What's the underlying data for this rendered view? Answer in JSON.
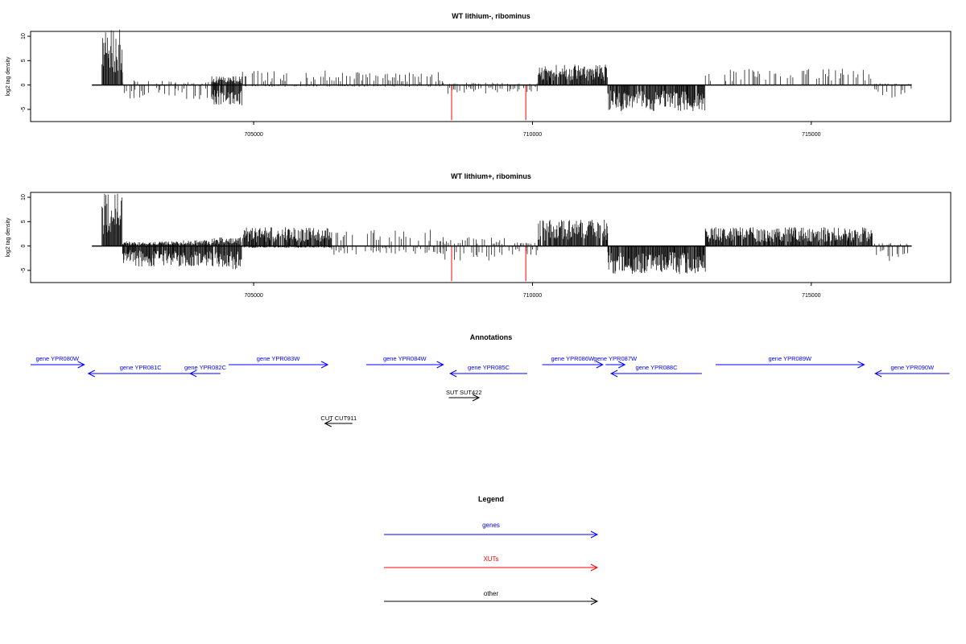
{
  "chart_data": [
    {
      "type": "bar",
      "title": "WT lithium-, ribominus",
      "ylabel": "log2 tag density",
      "xlim": [
        701000,
        717500
      ],
      "ylim": [
        -7.5,
        11
      ],
      "x_ticks": [
        705000,
        710000,
        715000
      ],
      "x_tick_labels": [
        "705000",
        "710000",
        "715000"
      ],
      "y_ticks": [
        -5,
        0,
        5,
        10
      ],
      "y_tick_labels": [
        "-5",
        "0",
        "5",
        "10"
      ],
      "baseline_range": [
        702100,
        716800
      ],
      "profile": [
        {
          "start": 702280,
          "end": 702650,
          "plus": 9.5,
          "minus": 0
        },
        {
          "start": 702650,
          "end": 703600,
          "plus": 0.8,
          "minus": -2.5
        },
        {
          "start": 703600,
          "end": 704250,
          "plus": 0.5,
          "minus": -2.5
        },
        {
          "start": 704250,
          "end": 704800,
          "plus": 1.5,
          "minus": -3.5
        },
        {
          "start": 704800,
          "end": 706400,
          "plus": 2.5,
          "minus": -0.3
        },
        {
          "start": 706400,
          "end": 708400,
          "plus": 2.2,
          "minus": -0.3
        },
        {
          "start": 708400,
          "end": 709700,
          "plus": 0.4,
          "minus": -1.5
        },
        {
          "start": 709700,
          "end": 710100,
          "plus": 0.3,
          "minus": -1.2
        },
        {
          "start": 710100,
          "end": 711350,
          "plus": 3.5,
          "minus": 0
        },
        {
          "start": 711350,
          "end": 713100,
          "plus": 0,
          "minus": -4.5
        },
        {
          "start": 713100,
          "end": 716100,
          "plus": 2.8,
          "minus": 0
        },
        {
          "start": 716100,
          "end": 716800,
          "plus": 0.3,
          "minus": -2.2
        }
      ],
      "highlights": [
        {
          "x": 708550,
          "value": -7.2,
          "color": "#ff0000"
        },
        {
          "x": 709880,
          "value": -7.2,
          "color": "#ff0000"
        }
      ]
    },
    {
      "type": "bar",
      "title": "WT lithium+, ribominus",
      "ylabel": "log2 tag density",
      "xlim": [
        701000,
        717500
      ],
      "ylim": [
        -7.5,
        11
      ],
      "x_ticks": [
        705000,
        710000,
        715000
      ],
      "x_tick_labels": [
        "705000",
        "710000",
        "715000"
      ],
      "y_ticks": [
        -5,
        0,
        5,
        10
      ],
      "y_tick_labels": [
        "-5",
        "0",
        "5",
        "10"
      ],
      "baseline_range": [
        702100,
        716800
      ],
      "profile": [
        {
          "start": 702280,
          "end": 702650,
          "plus": 9.0,
          "minus": 0
        },
        {
          "start": 702650,
          "end": 703600,
          "plus": 0.8,
          "minus": -3.5
        },
        {
          "start": 703600,
          "end": 704250,
          "plus": 1.0,
          "minus": -3.5
        },
        {
          "start": 704250,
          "end": 704800,
          "plus": 1.5,
          "minus": -4.0
        },
        {
          "start": 704800,
          "end": 706400,
          "plus": 3.2,
          "minus": -0.3
        },
        {
          "start": 706400,
          "end": 708400,
          "plus": 2.8,
          "minus": -1.5
        },
        {
          "start": 708400,
          "end": 709700,
          "plus": 1.5,
          "minus": -2.5
        },
        {
          "start": 709700,
          "end": 710100,
          "plus": 0.6,
          "minus": -2.0
        },
        {
          "start": 710100,
          "end": 711350,
          "plus": 4.5,
          "minus": 0
        },
        {
          "start": 711350,
          "end": 713100,
          "plus": 0,
          "minus": -4.8
        },
        {
          "start": 713100,
          "end": 716100,
          "plus": 3.2,
          "minus": 0
        },
        {
          "start": 716100,
          "end": 716800,
          "plus": 0.5,
          "minus": -2.8
        }
      ],
      "highlights": [
        {
          "x": 708550,
          "value": -7.2,
          "color": "#ff0000"
        },
        {
          "x": 709880,
          "value": -7.2,
          "color": "#ff0000"
        }
      ]
    }
  ],
  "annotations": {
    "title": "Annotations",
    "tracks": [
      {
        "label": "gene YPR080W",
        "strand": "+",
        "start": 701000,
        "end": 702950,
        "color": "#0000ff",
        "row": 0
      },
      {
        "label": "gene YPR081C",
        "strand": "-",
        "start": 703100,
        "end": 706900,
        "color": "#0000ff",
        "row": 1
      },
      {
        "label": "gene YPR082C",
        "strand": "-",
        "start": 706800,
        "end": 707900,
        "color": "#0000ff",
        "row": 1
      },
      {
        "label": "gene YPR083W",
        "strand": "+",
        "start": 708200,
        "end": 711800,
        "color": "#0000ff",
        "row": 0
      },
      {
        "label": "gene YPR084W",
        "strand": "+",
        "start": 713200,
        "end": 716000,
        "color": "#0000ff",
        "row": 0
      },
      {
        "label": "gene YPR085C",
        "strand": "-",
        "start": 716250,
        "end": 719050,
        "color": "#0000ff",
        "row": 1
      },
      {
        "label": "gene YPR086W",
        "strand": "+",
        "start": 719600,
        "end": 721800,
        "color": "#0000ff",
        "row": 0
      },
      {
        "label": "gene YPR087W",
        "strand": "+",
        "start": 721900,
        "end": 722600,
        "color": "#0000ff",
        "row": 0
      },
      {
        "label": "gene YPR088C",
        "strand": "-",
        "start": 722100,
        "end": 725400,
        "color": "#0000ff",
        "row": 1
      },
      {
        "label": "gene YPR089W",
        "strand": "+",
        "start": 725900,
        "end": 731300,
        "color": "#0000ff",
        "row": 0
      },
      {
        "label": "gene YPR090W",
        "strand": "-",
        "start": 731700,
        "end": 734400,
        "color": "#0000ff",
        "row": 1
      },
      {
        "label": "SUT SUT422",
        "strand": "+",
        "start": 716200,
        "end": 717300,
        "color": "#000000",
        "row": 2
      },
      {
        "label": "CUT CUT911",
        "strand": "-",
        "start": 711700,
        "end": 712700,
        "color": "#000000",
        "row": 3
      }
    ]
  },
  "legend": {
    "title": "Legend",
    "items": [
      {
        "label": "genes",
        "color": "#0000ff"
      },
      {
        "label": "XUTs",
        "color": "#ff0000"
      },
      {
        "label": "other",
        "color": "#000000"
      }
    ]
  }
}
